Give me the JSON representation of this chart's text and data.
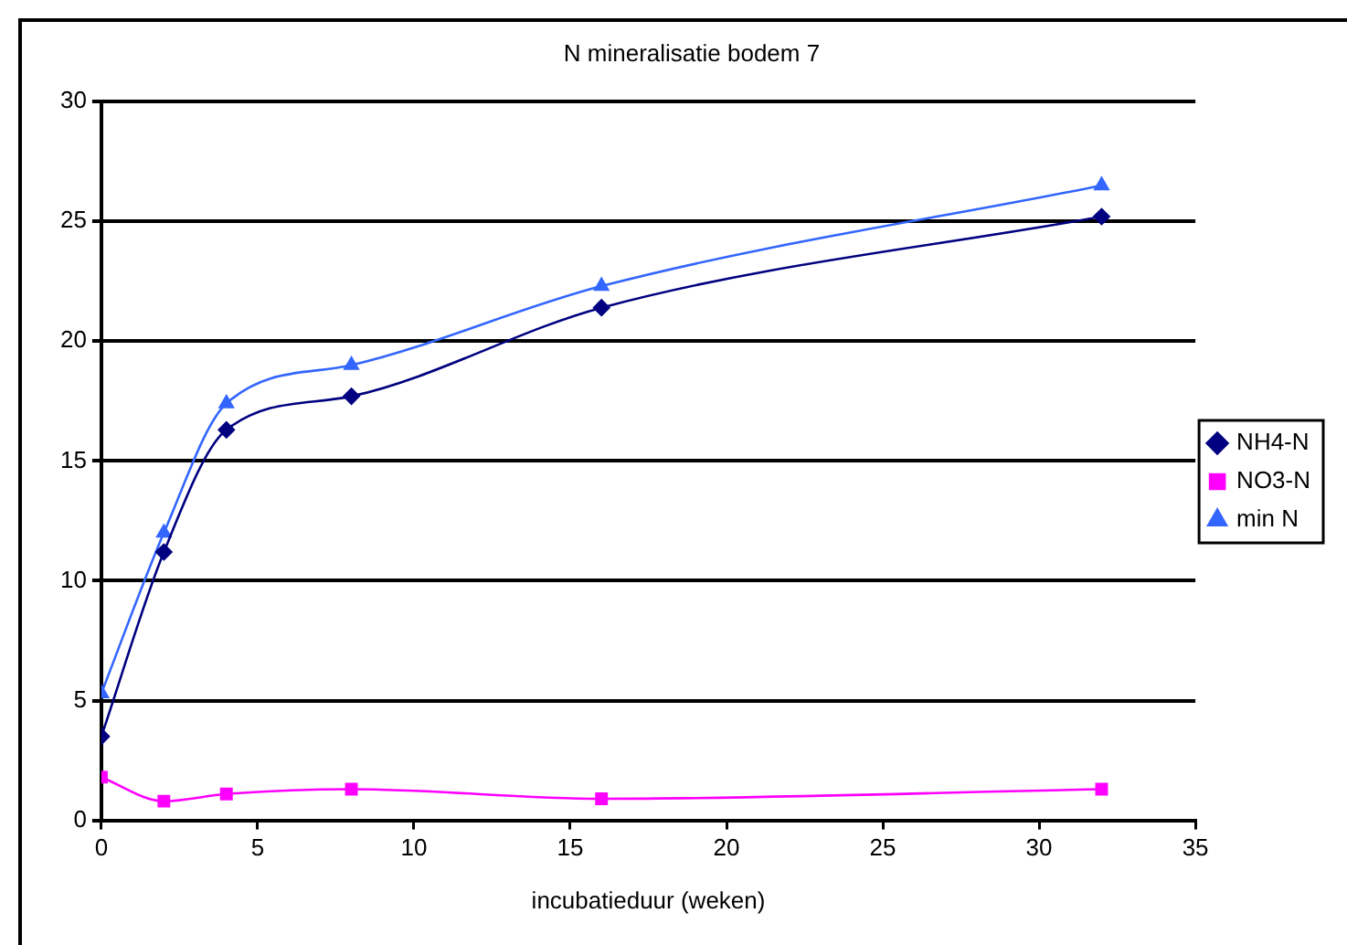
{
  "chart_data": {
    "type": "line",
    "title": "N mineralisatie bodem 7",
    "xlabel": "incubatieduur (weken)",
    "x": [
      0,
      2,
      4,
      8,
      16,
      32
    ],
    "series": [
      {
        "name": "NH4-N",
        "color": "#000080",
        "marker": "diamond",
        "values": [
          3.5,
          11.2,
          16.3,
          17.7,
          21.4,
          25.2
        ]
      },
      {
        "name": "NO3-N",
        "color": "#ff00ff",
        "marker": "square",
        "values": [
          1.8,
          0.8,
          1.1,
          1.3,
          0.9,
          1.3
        ]
      },
      {
        "name": "min N",
        "color": "#3366ff",
        "marker": "triangle",
        "values": [
          5.3,
          12.0,
          17.4,
          19.0,
          22.3,
          26.5
        ]
      }
    ],
    "xlim": [
      0,
      35
    ],
    "xticks": [
      0,
      5,
      10,
      15,
      20,
      25,
      30,
      35
    ],
    "ylim": [
      0,
      30
    ],
    "yticks": [
      0,
      5,
      10,
      15,
      20,
      25,
      30
    ],
    "grid": "y",
    "legend": "right",
    "line_style": "solid"
  }
}
